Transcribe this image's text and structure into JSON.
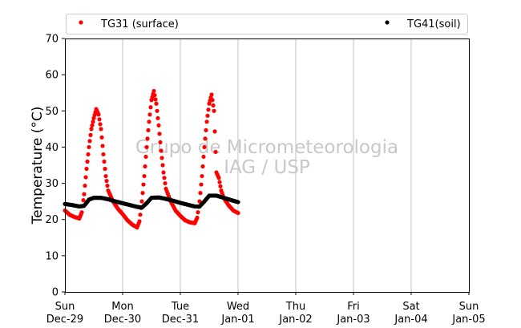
{
  "chart_data": {
    "type": "scatter",
    "title": "",
    "xlabel": "",
    "ylabel": "Temperature (°C)",
    "ylim": [
      0,
      70
    ],
    "yticks": [
      0,
      10,
      20,
      30,
      40,
      50,
      60,
      70
    ],
    "xlim": [
      "2024-12-29 00:00",
      "2025-01-05 00:00"
    ],
    "xticks": [
      {
        "date": "2024-12-29",
        "line1": "Sun",
        "line2": "Dec-29"
      },
      {
        "date": "2024-12-30",
        "line1": "Mon",
        "line2": "Dec-30"
      },
      {
        "date": "2024-12-31",
        "line1": "Tue",
        "line2": "Dec-31"
      },
      {
        "date": "2025-01-01",
        "line1": "Wed",
        "line2": "Jan-01"
      },
      {
        "date": "2025-01-02",
        "line1": "Thu",
        "line2": "Jan-02"
      },
      {
        "date": "2025-01-03",
        "line1": "Fri",
        "line2": "Jan-03"
      },
      {
        "date": "2025-01-04",
        "line1": "Sat",
        "line2": "Jan-04"
      },
      {
        "date": "2025-01-05",
        "line1": "Sun",
        "line2": "Jan-05"
      }
    ],
    "grid": "vertical lines at day ticks",
    "legend_position": "top, above plot",
    "watermark": [
      "Grupo de Micrometeorologia",
      "IAG / USP"
    ],
    "series": [
      {
        "name": "TG31 (surface)",
        "color": "#ff0000",
        "marker": "dot",
        "points": [
          [
            "2024-12-29 00:00",
            22.5
          ],
          [
            "2024-12-29 02:00",
            21.3
          ],
          [
            "2024-12-29 04:00",
            20.7
          ],
          [
            "2024-12-29 06:00",
            20.3
          ],
          [
            "2024-12-29 07:00",
            22.0
          ],
          [
            "2024-12-29 08:00",
            27.0
          ],
          [
            "2024-12-29 09:00",
            34.0
          ],
          [
            "2024-12-29 10:00",
            40.0
          ],
          [
            "2024-12-29 11:00",
            45.0
          ],
          [
            "2024-12-29 12:00",
            48.0
          ],
          [
            "2024-12-29 13:00",
            50.5
          ],
          [
            "2024-12-29 14:00",
            49.0
          ],
          [
            "2024-12-29 15:00",
            45.0
          ],
          [
            "2024-12-29 16:00",
            38.0
          ],
          [
            "2024-12-29 17:00",
            32.0
          ],
          [
            "2024-12-29 18:00",
            28.0
          ],
          [
            "2024-12-29 20:00",
            25.0
          ],
          [
            "2024-12-29 22:00",
            23.0
          ],
          [
            "2024-12-30 00:00",
            21.5
          ],
          [
            "2024-12-30 02:00",
            19.8
          ],
          [
            "2024-12-30 04:00",
            18.6
          ],
          [
            "2024-12-30 06:00",
            17.8
          ],
          [
            "2024-12-30 07:00",
            19.5
          ],
          [
            "2024-12-30 08:00",
            25.0
          ],
          [
            "2024-12-30 09:00",
            32.0
          ],
          [
            "2024-12-30 10:00",
            40.0
          ],
          [
            "2024-12-30 11:00",
            47.0
          ],
          [
            "2024-12-30 12:00",
            53.0
          ],
          [
            "2024-12-30 13:00",
            55.5
          ],
          [
            "2024-12-30 14:00",
            52.0
          ],
          [
            "2024-12-30 15:00",
            46.0
          ],
          [
            "2024-12-30 16:00",
            39.0
          ],
          [
            "2024-12-30 17:00",
            33.0
          ],
          [
            "2024-12-30 18:00",
            28.5
          ],
          [
            "2024-12-30 20:00",
            25.0
          ],
          [
            "2024-12-30 22:00",
            22.5
          ],
          [
            "2024-12-31 00:00",
            21.0
          ],
          [
            "2024-12-31 02:00",
            19.8
          ],
          [
            "2024-12-31 04:00",
            19.2
          ],
          [
            "2024-12-31 06:00",
            19.0
          ],
          [
            "2024-12-31 07:00",
            20.5
          ],
          [
            "2024-12-31 08:00",
            25.0
          ],
          [
            "2024-12-31 09:00",
            32.0
          ],
          [
            "2024-12-31 10:00",
            40.0
          ],
          [
            "2024-12-31 11:00",
            47.0
          ],
          [
            "2024-12-31 12:00",
            52.0
          ],
          [
            "2024-12-31 13:00",
            54.5
          ],
          [
            "2024-12-31 14:00",
            50.0
          ],
          [
            "2024-12-31 15:00",
            33.0
          ],
          [
            "2024-12-31 16:00",
            31.5
          ],
          [
            "2024-12-31 17:00",
            28.0
          ],
          [
            "2024-12-31 18:00",
            26.0
          ],
          [
            "2024-12-31 20:00",
            24.0
          ],
          [
            "2024-12-31 22:00",
            22.5
          ],
          [
            "2025-01-01 00:00",
            21.8
          ]
        ]
      },
      {
        "name": "TG41(soil)",
        "color": "#000000",
        "marker": "dot",
        "points": [
          [
            "2024-12-29 00:00",
            24.3
          ],
          [
            "2024-12-29 03:00",
            24.0
          ],
          [
            "2024-12-29 06:00",
            23.6
          ],
          [
            "2024-12-29 08:00",
            23.8
          ],
          [
            "2024-12-29 10:00",
            25.5
          ],
          [
            "2024-12-29 12:00",
            26.0
          ],
          [
            "2024-12-29 15:00",
            26.0
          ],
          [
            "2024-12-29 18:00",
            25.6
          ],
          [
            "2024-12-29 21:00",
            25.0
          ],
          [
            "2024-12-30 00:00",
            24.5
          ],
          [
            "2024-12-30 03:00",
            24.0
          ],
          [
            "2024-12-30 06:00",
            23.5
          ],
          [
            "2024-12-30 08:00",
            23.3
          ],
          [
            "2024-12-30 10:00",
            24.5
          ],
          [
            "2024-12-30 12:00",
            26.0
          ],
          [
            "2024-12-30 15:00",
            26.1
          ],
          [
            "2024-12-30 18:00",
            25.7
          ],
          [
            "2024-12-30 21:00",
            25.2
          ],
          [
            "2024-12-31 00:00",
            24.6
          ],
          [
            "2024-12-31 03:00",
            24.1
          ],
          [
            "2024-12-31 06:00",
            23.6
          ],
          [
            "2024-12-31 08:00",
            23.6
          ],
          [
            "2024-12-31 10:00",
            25.0
          ],
          [
            "2024-12-31 12:00",
            26.6
          ],
          [
            "2024-12-31 15:00",
            26.6
          ],
          [
            "2024-12-31 18:00",
            26.0
          ],
          [
            "2024-12-31 21:00",
            25.4
          ],
          [
            "2025-01-01 00:00",
            24.8
          ]
        ]
      }
    ]
  }
}
